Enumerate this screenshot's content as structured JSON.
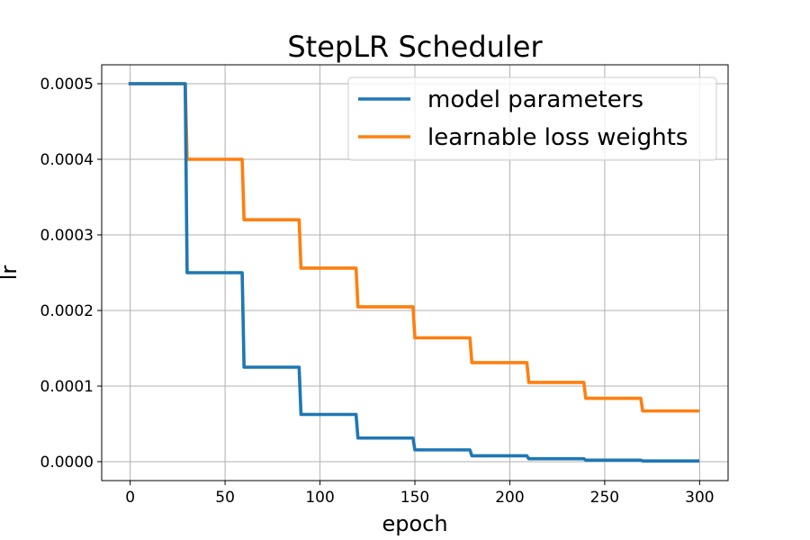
{
  "chart_data": {
    "type": "line",
    "title": "StepLR Scheduler",
    "xlabel": "epoch",
    "ylabel": "lr",
    "xlim": [
      -15,
      315
    ],
    "ylim": [
      -2.5e-05,
      0.000525
    ],
    "xticks": [
      0,
      50,
      100,
      150,
      200,
      250,
      300
    ],
    "xtick_labels": [
      "0",
      "50",
      "100",
      "150",
      "200",
      "250",
      "300"
    ],
    "yticks": [
      0,
      0.0001,
      0.0002,
      0.0003,
      0.0004,
      0.0005
    ],
    "ytick_labels": [
      "0.0000",
      "0.0001",
      "0.0002",
      "0.0003",
      "0.0004",
      "0.0005"
    ],
    "grid": true,
    "legend_position": "top-right",
    "step_size": 30,
    "x_end": 300,
    "series": [
      {
        "name": "model parameters",
        "color": "#1f77b4",
        "step_values": [
          0.0005,
          0.00025,
          0.000125,
          6.25e-05,
          3.125e-05,
          1.5625e-05,
          7.8125e-06,
          3.90625e-06,
          1.953125e-06,
          9.765625e-07
        ]
      },
      {
        "name": "learnable loss weights",
        "color": "#ff7f0e",
        "step_values": [
          0.0005,
          0.0004,
          0.00032,
          0.000256,
          0.0002048,
          0.00016384,
          0.000131072,
          0.0001048576,
          8.388608e-05,
          6.7108864e-05
        ]
      }
    ]
  }
}
